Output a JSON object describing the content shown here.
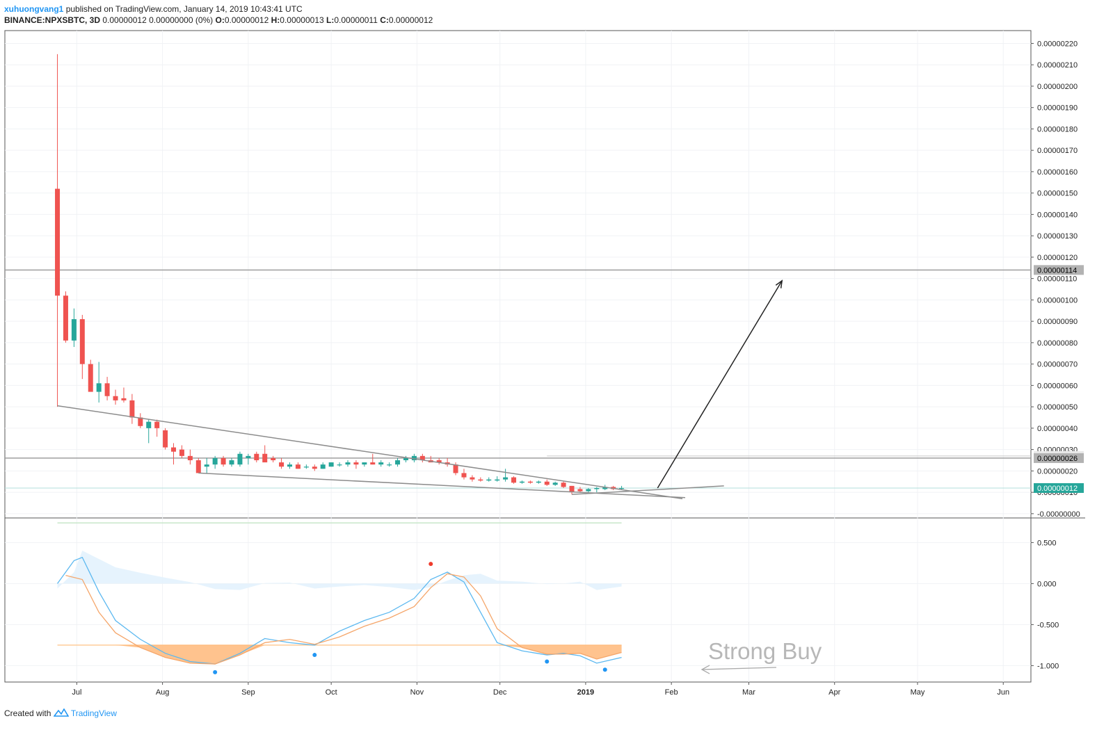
{
  "header": {
    "author": "xuhuongvang1",
    "published_text": "published on TradingView.com, January 14, 2019 10:43:41 UTC",
    "symbol": "BINANCE:NPXSBTC, 3D",
    "change": "0.00000012 0.00000000 (0%)",
    "o_label": "O:",
    "o_value": "0.00000012",
    "h_label": "H:",
    "h_value": "0.00000013",
    "l_label": "L:",
    "l_value": "0.00000011",
    "c_label": "C:",
    "c_value": "0.00000012"
  },
  "footer": {
    "created_with": "Created with",
    "brand": "TradingView"
  },
  "annotation": {
    "strong_buy": "Strong Buy"
  },
  "colors": {
    "up": "#26a69a",
    "down": "#ef5350",
    "accent": "#2196f3",
    "badge_gray": "#b2b2b2",
    "badge_teal": "#26a69a"
  },
  "chart_data": [
    {
      "type": "candlestick",
      "title": "",
      "y_tick_labels": [
        "0.00000220",
        "0.00000210",
        "0.00000200",
        "0.00000190",
        "0.00000180",
        "0.00000170",
        "0.00000160",
        "0.00000150",
        "0.00000140",
        "0.00000130",
        "0.00000120",
        "0.00000110",
        "0.00000100",
        "0.00000090",
        "0.00000080",
        "0.00000070",
        "0.00000060",
        "0.00000050",
        "0.00000040",
        "0.00000030",
        "0.00000020",
        "0.00000010",
        "-0.00000000"
      ],
      "ylim": [
        -2e-08,
        2.26e-06
      ],
      "x_tick_labels": [
        "Jul",
        "Aug",
        "Sep",
        "Oct",
        "Nov",
        "Dec",
        "2019",
        "Feb",
        "Mar",
        "Apr",
        "May",
        "Jun"
      ],
      "x_range": [
        "2018-06-05",
        "2019-06-11"
      ],
      "price_labels": {
        "resistance_high": "0.00000114",
        "level_27": "0.00000027",
        "level_26": "0.00000026",
        "last": "0.00000012"
      },
      "horizontal_levels": [
        1.14e-06,
        2.6e-07,
        2.7e-07,
        1.2e-07
      ],
      "candles": [
        {
          "t": "2018-06-24",
          "o": 1.52e-06,
          "h": 2.15e-06,
          "l": 5e-07,
          "c": 1.02e-06
        },
        {
          "t": "2018-06-27",
          "o": 1.02e-06,
          "h": 1.04e-06,
          "l": 8e-07,
          "c": 8.1e-07
        },
        {
          "t": "2018-06-30",
          "o": 8.1e-07,
          "h": 9.6e-07,
          "l": 7.8e-07,
          "c": 9.1e-07
        },
        {
          "t": "2018-07-03",
          "o": 9.1e-07,
          "h": 9.3e-07,
          "l": 6.3e-07,
          "c": 7e-07
        },
        {
          "t": "2018-07-06",
          "o": 7e-07,
          "h": 7.2e-07,
          "l": 5.8e-07,
          "c": 5.7e-07
        },
        {
          "t": "2018-07-09",
          "o": 5.7e-07,
          "h": 7.1e-07,
          "l": 5.2e-07,
          "c": 6.1e-07
        },
        {
          "t": "2018-07-12",
          "o": 6.1e-07,
          "h": 6.4e-07,
          "l": 5.3e-07,
          "c": 5.5e-07
        },
        {
          "t": "2018-07-15",
          "o": 5.5e-07,
          "h": 5.8e-07,
          "l": 5.1e-07,
          "c": 5.3e-07
        },
        {
          "t": "2018-07-18",
          "o": 5.4e-07,
          "h": 5.9e-07,
          "l": 5.2e-07,
          "c": 5.3e-07
        },
        {
          "t": "2018-07-21",
          "o": 5.3e-07,
          "h": 5.6e-07,
          "l": 4.2e-07,
          "c": 4.5e-07
        },
        {
          "t": "2018-07-24",
          "o": 4.5e-07,
          "h": 4.7e-07,
          "l": 4e-07,
          "c": 4.1e-07
        },
        {
          "t": "2018-07-27",
          "o": 4e-07,
          "h": 4.4e-07,
          "l": 3.3e-07,
          "c": 4.3e-07
        },
        {
          "t": "2018-07-30",
          "o": 4.3e-07,
          "h": 4.4e-07,
          "l": 3.6e-07,
          "c": 4e-07
        },
        {
          "t": "2018-08-02",
          "o": 3.9e-07,
          "h": 4e-07,
          "l": 3e-07,
          "c": 3.1e-07
        },
        {
          "t": "2018-08-05",
          "o": 3.1e-07,
          "h": 3.3e-07,
          "l": 2.3e-07,
          "c": 2.9e-07
        },
        {
          "t": "2018-08-08",
          "o": 3e-07,
          "h": 3.2e-07,
          "l": 2.6e-07,
          "c": 2.7e-07
        },
        {
          "t": "2018-08-11",
          "o": 2.7e-07,
          "h": 3e-07,
          "l": 2.3e-07,
          "c": 2.5e-07
        },
        {
          "t": "2018-08-14",
          "o": 2.5e-07,
          "h": 2.6e-07,
          "l": 1.9e-07,
          "c": 1.9e-07
        },
        {
          "t": "2018-08-17",
          "o": 2.2e-07,
          "h": 2.6e-07,
          "l": 1.9e-07,
          "c": 2.3e-07
        },
        {
          "t": "2018-08-20",
          "o": 2.3e-07,
          "h": 2.7e-07,
          "l": 2.1e-07,
          "c": 2.6e-07
        },
        {
          "t": "2018-08-23",
          "o": 2.6e-07,
          "h": 2.7e-07,
          "l": 2.2e-07,
          "c": 2.3e-07
        },
        {
          "t": "2018-08-26",
          "o": 2.3e-07,
          "h": 2.6e-07,
          "l": 2.2e-07,
          "c": 2.5e-07
        },
        {
          "t": "2018-08-29",
          "o": 2.3e-07,
          "h": 2.9e-07,
          "l": 2.2e-07,
          "c": 2.8e-07
        },
        {
          "t": "2018-09-01",
          "o": 2.6e-07,
          "h": 2.8e-07,
          "l": 2.3e-07,
          "c": 2.7e-07
        },
        {
          "t": "2018-09-04",
          "o": 2.8e-07,
          "h": 2.9e-07,
          "l": 2.4e-07,
          "c": 2.5e-07
        },
        {
          "t": "2018-09-07",
          "o": 2.8e-07,
          "h": 3.2e-07,
          "l": 2.5e-07,
          "c": 2.4e-07
        },
        {
          "t": "2018-09-10",
          "o": 2.6e-07,
          "h": 2.7e-07,
          "l": 2.4e-07,
          "c": 2.5e-07
        },
        {
          "t": "2018-09-13",
          "o": 2.4e-07,
          "h": 2.6e-07,
          "l": 2.1e-07,
          "c": 2.2e-07
        },
        {
          "t": "2018-09-16",
          "o": 2.2e-07,
          "h": 2.4e-07,
          "l": 2.1e-07,
          "c": 2.3e-07
        },
        {
          "t": "2018-09-19",
          "o": 2.3e-07,
          "h": 2.4e-07,
          "l": 2.1e-07,
          "c": 2.1e-07
        },
        {
          "t": "2018-09-22",
          "o": 2.2e-07,
          "h": 2.3e-07,
          "l": 2.1e-07,
          "c": 2.2e-07
        },
        {
          "t": "2018-09-25",
          "o": 2.2e-07,
          "h": 2.3e-07,
          "l": 2e-07,
          "c": 2.1e-07
        },
        {
          "t": "2018-09-28",
          "o": 2.1e-07,
          "h": 2.4e-07,
          "l": 2.1e-07,
          "c": 2.3e-07
        },
        {
          "t": "2018-10-01",
          "o": 2.2e-07,
          "h": 2.4e-07,
          "l": 2.2e-07,
          "c": 2.4e-07
        },
        {
          "t": "2018-10-04",
          "o": 2.3e-07,
          "h": 2.4e-07,
          "l": 2.2e-07,
          "c": 2.3e-07
        },
        {
          "t": "2018-10-07",
          "o": 2.3e-07,
          "h": 2.5e-07,
          "l": 2.2e-07,
          "c": 2.4e-07
        },
        {
          "t": "2018-10-10",
          "o": 2.4e-07,
          "h": 2.5e-07,
          "l": 2.1e-07,
          "c": 2.3e-07
        },
        {
          "t": "2018-10-13",
          "o": 2.3e-07,
          "h": 2.4e-07,
          "l": 2.2e-07,
          "c": 2.4e-07
        },
        {
          "t": "2018-10-16",
          "o": 2.4e-07,
          "h": 2.8e-07,
          "l": 2.3e-07,
          "c": 2.3e-07
        },
        {
          "t": "2018-10-19",
          "o": 2.3e-07,
          "h": 2.5e-07,
          "l": 2.2e-07,
          "c": 2.4e-07
        },
        {
          "t": "2018-10-22",
          "o": 2.3e-07,
          "h": 2.4e-07,
          "l": 2.2e-07,
          "c": 2.3e-07
        },
        {
          "t": "2018-10-25",
          "o": 2.3e-07,
          "h": 2.6e-07,
          "l": 2.2e-07,
          "c": 2.5e-07
        },
        {
          "t": "2018-10-28",
          "o": 2.5e-07,
          "h": 2.7e-07,
          "l": 2.4e-07,
          "c": 2.6e-07
        },
        {
          "t": "2018-10-31",
          "o": 2.5e-07,
          "h": 2.8e-07,
          "l": 2.4e-07,
          "c": 2.7e-07
        },
        {
          "t": "2018-11-03",
          "o": 2.7e-07,
          "h": 2.8e-07,
          "l": 2.4e-07,
          "c": 2.5e-07
        },
        {
          "t": "2018-11-06",
          "o": 2.5e-07,
          "h": 2.7e-07,
          "l": 2.4e-07,
          "c": 2.4e-07
        },
        {
          "t": "2018-11-09",
          "o": 2.5e-07,
          "h": 2.6e-07,
          "l": 2.3e-07,
          "c": 2.4e-07
        },
        {
          "t": "2018-11-12",
          "o": 2.4e-07,
          "h": 2.6e-07,
          "l": 2.2e-07,
          "c": 2.3e-07
        },
        {
          "t": "2018-11-15",
          "o": 2.3e-07,
          "h": 2.4e-07,
          "l": 1.8e-07,
          "c": 1.9e-07
        },
        {
          "t": "2018-11-18",
          "o": 1.9e-07,
          "h": 2.1e-07,
          "l": 1.6e-07,
          "c": 1.7e-07
        },
        {
          "t": "2018-11-21",
          "o": 1.7e-07,
          "h": 1.8e-07,
          "l": 1.5e-07,
          "c": 1.6e-07
        },
        {
          "t": "2018-11-24",
          "o": 1.6e-07,
          "h": 1.7e-07,
          "l": 1.5e-07,
          "c": 1.55e-07
        },
        {
          "t": "2018-11-27",
          "o": 1.55e-07,
          "h": 1.7e-07,
          "l": 1.5e-07,
          "c": 1.6e-07
        },
        {
          "t": "2018-11-30",
          "o": 1.55e-07,
          "h": 1.75e-07,
          "l": 1.5e-07,
          "c": 1.6e-07
        },
        {
          "t": "2018-12-03",
          "o": 1.6e-07,
          "h": 2.1e-07,
          "l": 1.5e-07,
          "c": 1.7e-07
        },
        {
          "t": "2018-12-06",
          "o": 1.7e-07,
          "h": 1.75e-07,
          "l": 1.4e-07,
          "c": 1.45e-07
        },
        {
          "t": "2018-12-09",
          "o": 1.45e-07,
          "h": 1.55e-07,
          "l": 1.4e-07,
          "c": 1.5e-07
        },
        {
          "t": "2018-12-12",
          "o": 1.5e-07,
          "h": 1.55e-07,
          "l": 1.4e-07,
          "c": 1.45e-07
        },
        {
          "t": "2018-12-15",
          "o": 1.45e-07,
          "h": 1.55e-07,
          "l": 1.4e-07,
          "c": 1.5e-07
        },
        {
          "t": "2018-12-18",
          "o": 1.5e-07,
          "h": 1.6e-07,
          "l": 1.3e-07,
          "c": 1.35e-07
        },
        {
          "t": "2018-12-21",
          "o": 1.35e-07,
          "h": 1.5e-07,
          "l": 1.3e-07,
          "c": 1.45e-07
        },
        {
          "t": "2018-12-24",
          "o": 1.45e-07,
          "h": 1.5e-07,
          "l": 1.2e-07,
          "c": 1.25e-07
        },
        {
          "t": "2018-12-27",
          "o": 1.3e-07,
          "h": 1.3e-07,
          "l": 9e-08,
          "c": 1e-07
        },
        {
          "t": "2018-12-30",
          "o": 1.15e-07,
          "h": 1.25e-07,
          "l": 1e-07,
          "c": 1.05e-07
        },
        {
          "t": "2019-01-02",
          "o": 1.05e-07,
          "h": 1.2e-07,
          "l": 1e-07,
          "c": 1.15e-07
        },
        {
          "t": "2019-01-05",
          "o": 1.15e-07,
          "h": 1.25e-07,
          "l": 1e-07,
          "c": 1.2e-07
        },
        {
          "t": "2019-01-08",
          "o": 1.15e-07,
          "h": 1.35e-07,
          "l": 1.1e-07,
          "c": 1.25e-07
        },
        {
          "t": "2019-01-11",
          "o": 1.25e-07,
          "h": 1.3e-07,
          "l": 1.1e-07,
          "c": 1.15e-07
        },
        {
          "t": "2019-01-14",
          "o": 1.2e-07,
          "h": 1.3e-07,
          "l": 1.1e-07,
          "c": 1.2e-07
        }
      ],
      "trendlines": [
        {
          "name": "upper",
          "from": {
            "t": "2018-06-24",
            "v": 5.05e-07
          },
          "to": {
            "t": "2019-02-05",
            "v": 7e-08
          }
        },
        {
          "name": "lower",
          "from": {
            "t": "2018-08-14",
            "v": 1.9e-07
          },
          "to": {
            "t": "2019-02-06",
            "v": 7.5e-08
          }
        },
        {
          "name": "projection-arrow",
          "from": {
            "t": "2019-01-27",
            "v": 1.2e-07
          },
          "to": {
            "t": "2019-03-13",
            "v": 1.09e-06
          }
        },
        {
          "name": "converge-line",
          "from": {
            "t": "2018-12-27",
            "v": 9e-08
          },
          "to": {
            "t": "2019-02-20",
            "v": 1.3e-07
          }
        }
      ]
    },
    {
      "type": "line",
      "title": "",
      "y_tick_labels": [
        "0.500",
        "0.000",
        "-0.500",
        "-1.000"
      ],
      "ylim": [
        -1.2,
        0.8
      ],
      "series": [
        {
          "color": "#5bb8f0",
          "x": [
            "2018-06-24",
            "2018-06-30",
            "2018-07-03",
            "2018-07-09",
            "2018-07-15",
            "2018-07-24",
            "2018-08-02",
            "2018-08-11",
            "2018-08-20",
            "2018-08-29",
            "2018-09-07",
            "2018-09-16",
            "2018-09-25",
            "2018-10-04",
            "2018-10-13",
            "2018-10-22",
            "2018-10-31",
            "2018-11-06",
            "2018-11-12",
            "2018-11-18",
            "2018-11-24",
            "2018-11-30",
            "2018-12-09",
            "2018-12-18",
            "2018-12-24",
            "2018-12-30",
            "2019-01-05",
            "2019-01-14"
          ],
          "values": [
            0.0,
            0.28,
            0.32,
            -0.1,
            -0.45,
            -0.68,
            -0.85,
            -0.95,
            -0.98,
            -0.85,
            -0.67,
            -0.72,
            -0.75,
            -0.58,
            -0.45,
            -0.35,
            -0.18,
            0.05,
            0.14,
            0.02,
            -0.35,
            -0.72,
            -0.82,
            -0.87,
            -0.85,
            -0.88,
            -0.97,
            -0.9
          ]
        },
        {
          "color": "#f5a66a",
          "x": [
            "2018-06-27",
            "2018-07-03",
            "2018-07-09",
            "2018-07-15",
            "2018-07-24",
            "2018-08-02",
            "2018-08-11",
            "2018-08-20",
            "2018-08-29",
            "2018-09-07",
            "2018-09-16",
            "2018-09-25",
            "2018-10-04",
            "2018-10-13",
            "2018-10-22",
            "2018-10-31",
            "2018-11-06",
            "2018-11-12",
            "2018-11-18",
            "2018-11-24",
            "2018-11-30",
            "2018-12-09",
            "2018-12-18",
            "2018-12-24",
            "2018-12-30",
            "2019-01-05",
            "2019-01-14"
          ],
          "values": [
            0.1,
            0.05,
            -0.35,
            -0.6,
            -0.78,
            -0.9,
            -0.97,
            -0.98,
            -0.87,
            -0.72,
            -0.68,
            -0.74,
            -0.65,
            -0.52,
            -0.42,
            -0.28,
            -0.05,
            0.12,
            0.08,
            -0.15,
            -0.55,
            -0.78,
            -0.86,
            -0.86,
            -0.85,
            -0.92,
            -0.84
          ]
        }
      ],
      "markers": [
        {
          "color": "#ef3b2c",
          "t": "2018-11-06",
          "v": 0.24
        },
        {
          "color": "#2196f3",
          "t": "2018-08-20",
          "v": -1.08
        },
        {
          "color": "#2196f3",
          "t": "2018-09-25",
          "v": -0.87
        },
        {
          "color": "#2196f3",
          "t": "2018-12-18",
          "v": -0.95
        },
        {
          "color": "#2196f3",
          "t": "2019-01-08",
          "v": -1.05
        }
      ]
    }
  ]
}
